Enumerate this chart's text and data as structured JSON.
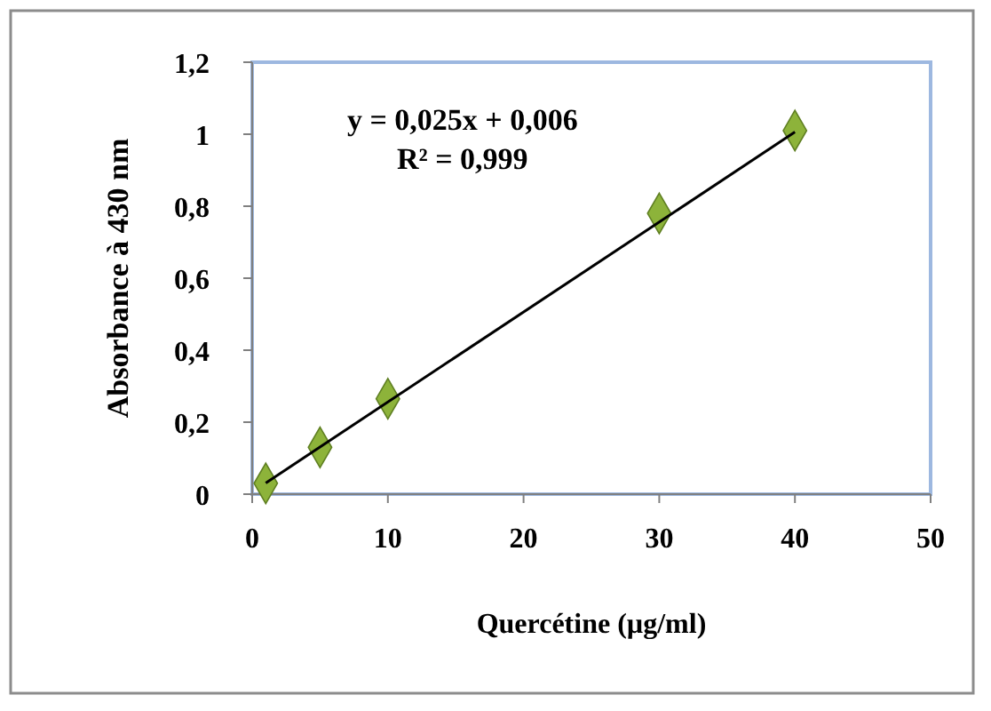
{
  "chart_data": {
    "type": "scatter",
    "xlabel": "Quercétine (µg/ml)",
    "ylabel": "Absorbance à 430 nm",
    "annotations": [
      "y = 0,025x + 0,006",
      "R² = 0,999"
    ],
    "series": [
      {
        "color": "#8db33a",
        "marker": "diamond",
        "x": [
          1,
          5,
          10,
          30,
          40
        ],
        "values": [
          0.03,
          0.13,
          0.265,
          0.78,
          1.01
        ]
      },
      {
        "type": "line",
        "color": "#000000",
        "marker": "none",
        "line_style": "solid",
        "x": [
          1,
          40
        ],
        "values": [
          0.031,
          1.006
        ]
      }
    ],
    "xlim": [
      0,
      50
    ],
    "xticks": [
      0,
      10,
      20,
      30,
      40,
      50
    ],
    "ylim": [
      0,
      1.2
    ],
    "yticks": [
      0,
      {
        "value": 0.2,
        "label": "0,2"
      },
      {
        "value": 0.4,
        "label": "0,4"
      },
      {
        "value": 0.6,
        "label": "0,6"
      },
      {
        "value": 0.8,
        "label": "0,8"
      },
      1,
      {
        "value": 1.2,
        "label": "1,2"
      }
    ],
    "grid": false
  }
}
